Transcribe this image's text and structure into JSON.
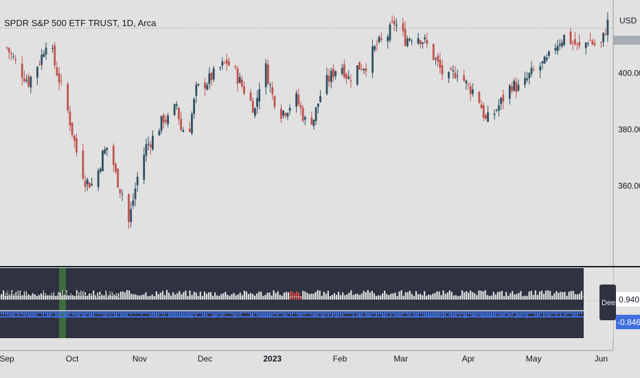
{
  "header": {
    "symbol_title": "SPDR S&P 500 ETF TRUST, 1D, Arca"
  },
  "price_axis": {
    "currency": "USD"
  },
  "indicator": {
    "title": "Breadth - Thrust Indicators [Layed]",
    "last_value_label": "0.940",
    "second_value_label": "-0.846",
    "tag_label": "Deem"
  },
  "colors": {
    "up": "#2f4f5f",
    "down": "#c0524f",
    "pane_bg": "#2f3241",
    "indicator_bar": "#e8e8e8",
    "indicator_bar_high": "#d94b4b",
    "indicator_blue": "#3f6fe0",
    "highlight_green": "#3f6b3f"
  },
  "chart_data": [
    {
      "type": "candlestick",
      "title": "SPDR S&P 500 ETF TRUST, 1D, Arca",
      "ylabel": "USD",
      "ylim": [
        340,
        424
      ],
      "y_ticks": [
        360,
        380,
        400
      ],
      "x_ticks": [
        "Sep",
        "Oct",
        "Nov",
        "Dec",
        "2023",
        "Feb",
        "Mar",
        "Apr",
        "May",
        "Jun"
      ],
      "x_tick_days": [
        0,
        30,
        61,
        91,
        122,
        153,
        181,
        212,
        242,
        273
      ],
      "close_path": [
        [
          0,
          409
        ],
        [
          6,
          401
        ],
        [
          10,
          397
        ],
        [
          16,
          406
        ],
        [
          19,
          414
        ],
        [
          22,
          403
        ],
        [
          27,
          390
        ],
        [
          32,
          372
        ],
        [
          36,
          362
        ],
        [
          40,
          360
        ],
        [
          44,
          371
        ],
        [
          47,
          375
        ],
        [
          50,
          364
        ],
        [
          52,
          359
        ],
        [
          54,
          356
        ],
        [
          56,
          347
        ],
        [
          60,
          363
        ],
        [
          64,
          374
        ],
        [
          68,
          378
        ],
        [
          72,
          384
        ],
        [
          75,
          383
        ],
        [
          78,
          389
        ],
        [
          80,
          380
        ],
        [
          84,
          381
        ],
        [
          87,
          394
        ],
        [
          92,
          397
        ],
        [
          97,
          401
        ],
        [
          101,
          404
        ],
        [
          105,
          400
        ],
        [
          109,
          394
        ],
        [
          114,
          387
        ],
        [
          118,
          405
        ],
        [
          122,
          392
        ],
        [
          126,
          386
        ],
        [
          128,
          387
        ],
        [
          133,
          391
        ],
        [
          137,
          383
        ],
        [
          141,
          384
        ],
        [
          145,
          395
        ],
        [
          149,
          399
        ],
        [
          153,
          404
        ],
        [
          157,
          398
        ],
        [
          161,
          402
        ],
        [
          165,
          403
        ],
        [
          170,
          410
        ],
        [
          174,
          412
        ],
        [
          178,
          418
        ],
        [
          183,
          412
        ],
        [
          188,
          414
        ],
        [
          192,
          411
        ],
        [
          196,
          406
        ],
        [
          200,
          400
        ],
        [
          203,
          398
        ],
        [
          207,
          401
        ],
        [
          212,
          395
        ],
        [
          216,
          393
        ],
        [
          220,
          383
        ],
        [
          224,
          386
        ],
        [
          228,
          391
        ],
        [
          232,
          396
        ],
        [
          236,
          394
        ],
        [
          240,
          399
        ],
        [
          244,
          402
        ],
        [
          248,
          404
        ],
        [
          252,
          410
        ],
        [
          256,
          413
        ],
        [
          260,
          411
        ],
        [
          264,
          408
        ],
        [
          267,
          412
        ],
        [
          270,
          410
        ],
        [
          273,
          410
        ],
        [
          276,
          418
        ]
      ],
      "last_close": 419
    },
    {
      "type": "bar",
      "title": "Breadth - Thrust Indicators [Layed]",
      "series": [
        {
          "name": "",
          "last_value": 0.94
        },
        {
          "name": "",
          "last_value": -0.846
        }
      ]
    }
  ]
}
